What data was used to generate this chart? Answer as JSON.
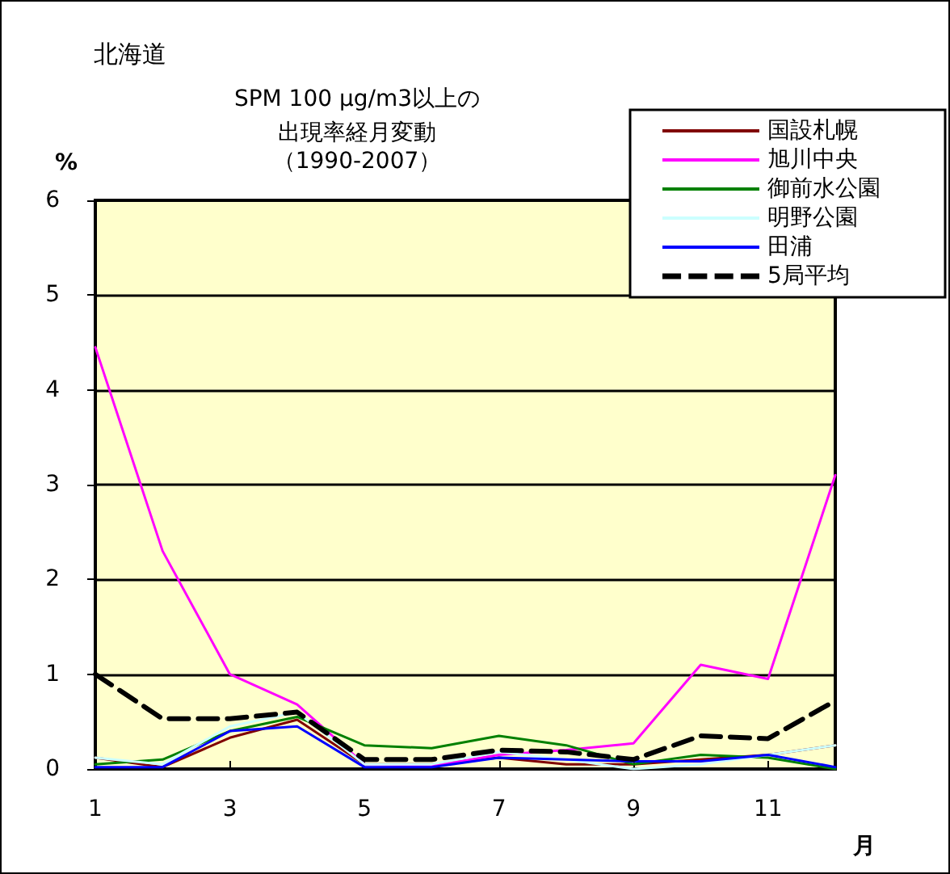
{
  "chart_data": {
    "type": "line",
    "title": "北海道",
    "subtitle": "SPM 100 μg/m3以上の出現率経月変動",
    "annotations": [
      "（1990-2007）"
    ],
    "xlabel": "月",
    "ylabel": "%",
    "categories": [
      "1",
      null,
      "3",
      null,
      "5",
      null,
      "7",
      null,
      "9",
      null,
      "11",
      null
    ],
    "series": [
      {
        "name": "国設札幌",
        "color": "#800000",
        "values": [
          0.12,
          0.02,
          0.33,
          0.52,
          0.05,
          0.05,
          0.12,
          0.05,
          0.05,
          0.1,
          0.15,
          0.25
        ]
      },
      {
        "name": "旭川中央",
        "color": "#ff00ff",
        "values": [
          4.45,
          2.3,
          1.0,
          0.68,
          0.05,
          0.03,
          0.15,
          0.2,
          0.27,
          1.1,
          0.95,
          3.1
        ]
      },
      {
        "name": "御前水公園",
        "color": "#008000",
        "values": [
          0.05,
          0.1,
          0.4,
          0.55,
          0.25,
          0.22,
          0.35,
          0.25,
          0.05,
          0.15,
          0.12,
          0.0
        ]
      },
      {
        "name": "明野公園",
        "color": "#ccffff",
        "values": [
          0.12,
          0.05,
          0.45,
          0.6,
          0.05,
          0.05,
          0.18,
          0.1,
          0.0,
          0.05,
          0.15,
          0.25
        ]
      },
      {
        "name": "田浦",
        "color": "#0000ff",
        "values": [
          0.02,
          0.02,
          0.4,
          0.45,
          0.02,
          0.02,
          0.12,
          0.1,
          0.08,
          0.08,
          0.15,
          0.02
        ]
      },
      {
        "name": "5局平均",
        "color": "#000000",
        "line_style": "dashed",
        "values": [
          1.0,
          0.53,
          0.53,
          0.6,
          0.1,
          0.1,
          0.2,
          0.18,
          0.1,
          0.35,
          0.32,
          0.72
        ]
      }
    ],
    "ylim": [
      0,
      6
    ],
    "yticks": [
      0,
      1,
      2,
      3,
      4,
      5,
      6
    ],
    "grid": "y",
    "legend": "top right",
    "marker": "none"
  }
}
